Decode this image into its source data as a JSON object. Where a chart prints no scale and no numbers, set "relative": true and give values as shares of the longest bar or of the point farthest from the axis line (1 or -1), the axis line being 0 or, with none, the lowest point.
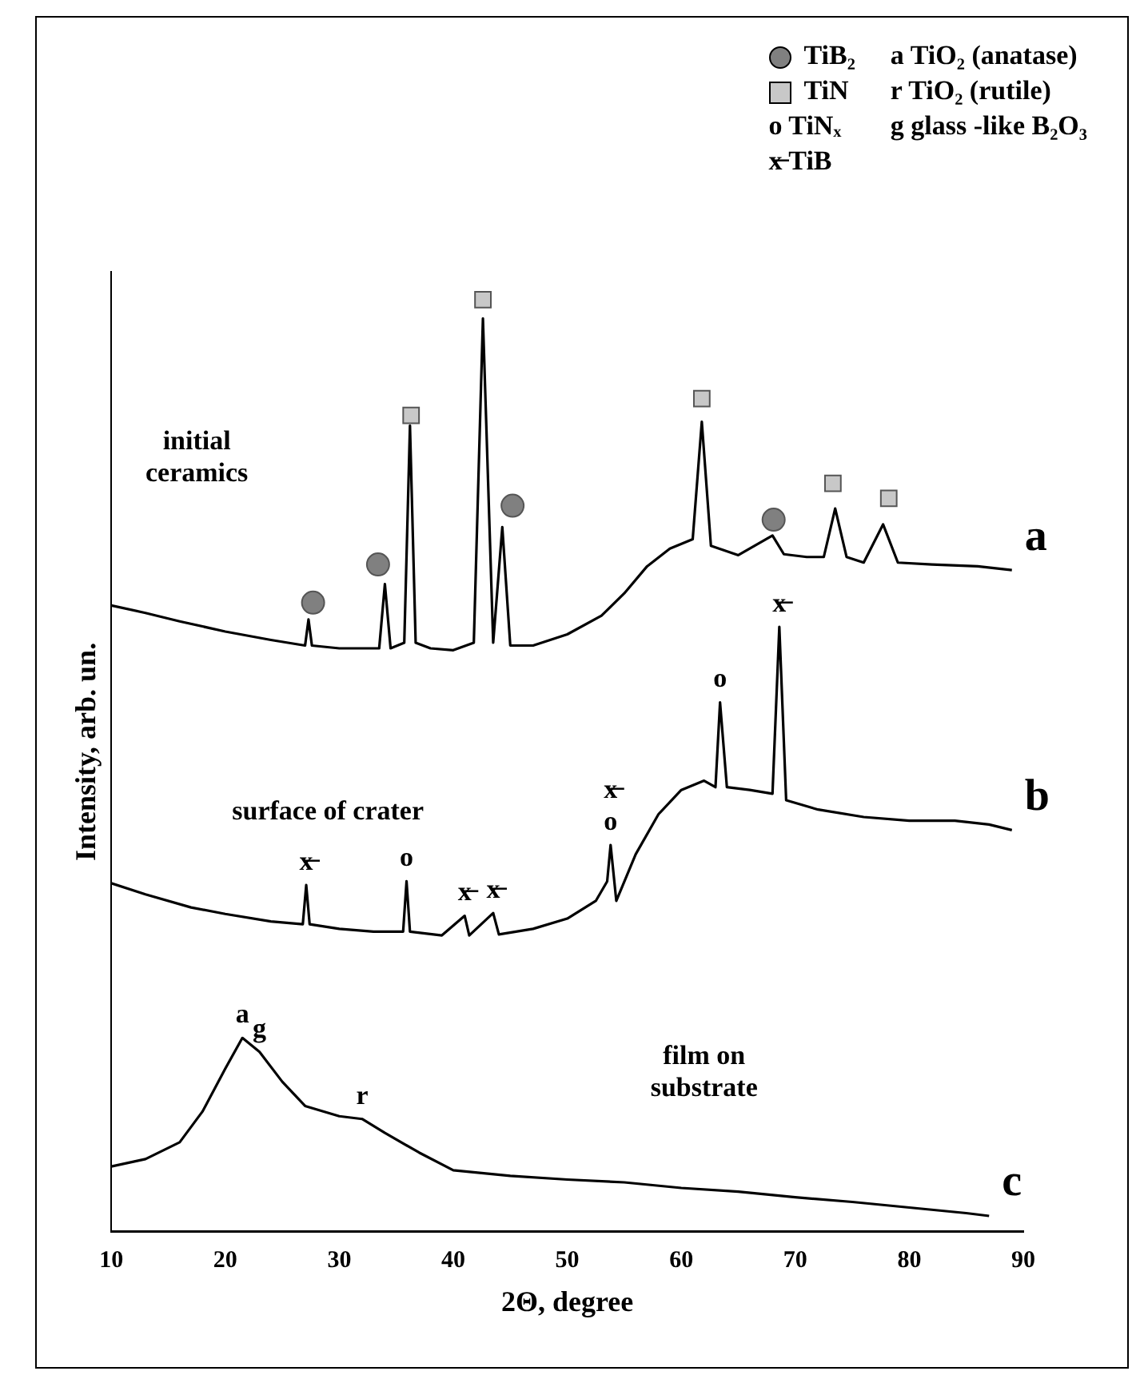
{
  "chart_data": {
    "type": "line",
    "relative": true,
    "xlabel": "2Θ, degree",
    "ylabel": "Intensity, arb. un.",
    "xlim": [
      10,
      90
    ],
    "xticks": [
      10,
      20,
      30,
      40,
      50,
      60,
      70,
      80,
      90
    ],
    "grid": false,
    "legend": "top right",
    "marker": "none",
    "line_style": "solid",
    "series": [
      {
        "name": "a",
        "color": "#000000",
        "x": [
          10,
          13,
          16,
          20,
          24,
          27,
          27.3,
          27.6,
          30,
          33.5,
          34,
          34.5,
          35.7,
          36.2,
          36.7,
          38,
          40,
          41.8,
          42.6,
          43.5,
          44.3,
          45,
          47,
          50,
          53,
          55,
          57,
          59,
          61,
          61.8,
          62.6,
          65,
          68,
          69,
          71,
          72.5,
          73.5,
          74.5,
          76,
          77.7,
          79,
          82,
          86,
          89
        ],
        "values": [
          0.672,
          0.664,
          0.655,
          0.644,
          0.635,
          0.629,
          0.657,
          0.629,
          0.626,
          0.626,
          0.695,
          0.626,
          0.632,
          0.865,
          0.632,
          0.626,
          0.624,
          0.632,
          0.98,
          0.632,
          0.756,
          0.629,
          0.629,
          0.641,
          0.661,
          0.685,
          0.714,
          0.733,
          0.743,
          0.869,
          0.736,
          0.726,
          0.747,
          0.727,
          0.724,
          0.724,
          0.776,
          0.724,
          0.718,
          0.759,
          0.718,
          0.716,
          0.714,
          0.71
        ]
      },
      {
        "name": "b",
        "color": "#000000",
        "x": [
          10,
          13,
          17,
          20,
          24,
          26.8,
          27.1,
          27.4,
          30,
          33,
          35.6,
          35.9,
          36.2,
          39,
          41,
          41.4,
          43.5,
          44,
          47,
          50,
          52.5,
          53.5,
          53.8,
          54.3,
          56,
          58,
          60,
          62,
          63,
          63.4,
          64,
          66,
          68,
          68.6,
          69.2,
          72,
          76,
          80,
          84,
          87,
          89
        ],
        "values": [
          0.374,
          0.362,
          0.348,
          0.341,
          0.333,
          0.33,
          0.372,
          0.33,
          0.325,
          0.322,
          0.322,
          0.376,
          0.322,
          0.318,
          0.339,
          0.318,
          0.342,
          0.319,
          0.325,
          0.336,
          0.355,
          0.376,
          0.415,
          0.355,
          0.405,
          0.448,
          0.474,
          0.484,
          0.477,
          0.568,
          0.477,
          0.474,
          0.47,
          0.649,
          0.463,
          0.453,
          0.445,
          0.441,
          0.441,
          0.437,
          0.431
        ]
      },
      {
        "name": "c",
        "color": "#000000",
        "x": [
          10,
          13,
          16,
          18,
          20,
          21.5,
          23,
          25,
          27,
          30,
          32,
          34,
          37,
          40,
          45,
          50,
          55,
          60,
          65,
          70,
          75,
          80,
          85,
          87
        ],
        "values": [
          0.07,
          0.078,
          0.096,
          0.129,
          0.175,
          0.208,
          0.193,
          0.161,
          0.135,
          0.124,
          0.121,
          0.106,
          0.085,
          0.066,
          0.06,
          0.056,
          0.053,
          0.047,
          0.043,
          0.037,
          0.032,
          0.026,
          0.02,
          0.017
        ]
      },
      {
        "name": "TiB₂",
        "type": "scatter",
        "marker": "circle",
        "color": "#808080",
        "x": [
          27.7,
          33.4,
          45.2,
          68.1
        ],
        "values": [
          0.675,
          0.716,
          0.779,
          0.764
        ]
      },
      {
        "name": "TiN",
        "type": "scatter",
        "marker": "square",
        "color": "#c8c8c8",
        "x": [
          36.3,
          42.6,
          61.8,
          73.3,
          78.2
        ],
        "values": [
          0.876,
          1,
          0.894,
          0.803,
          0.787
        ]
      }
    ],
    "annotations": [
      "initial\nceramics",
      "surface of crater",
      "film on\nsubstrate",
      "o TiNₓ",
      "x̶ TiB",
      "a TiO₂ (anatase)",
      "r TiO₂ (rutile)",
      "g glass -like B₂O₃",
      {
        "text": "x̶",
        "x": 68.6,
        "y": 0.649
      },
      {
        "text": "o",
        "x": 63.4,
        "y": 0.568
      },
      {
        "text": "o",
        "x": 53.8,
        "y": 0.415
      },
      {
        "text": "x̶",
        "x": 53.8,
        "y": 0.415
      },
      {
        "text": "x̶",
        "x": 27.1,
        "y": 0.372
      },
      {
        "text": "o",
        "x": 35.9,
        "y": 0.376
      },
      {
        "text": "x̶",
        "x": 41,
        "y": 0.339
      },
      {
        "text": "x̶",
        "x": 43.5,
        "y": 0.342
      },
      {
        "text": "a",
        "x": 21.5,
        "y": 0.208
      },
      {
        "text": "g",
        "x": 23,
        "y": 0.193
      },
      {
        "text": "r",
        "x": 32,
        "y": 0.121
      }
    ]
  }
}
